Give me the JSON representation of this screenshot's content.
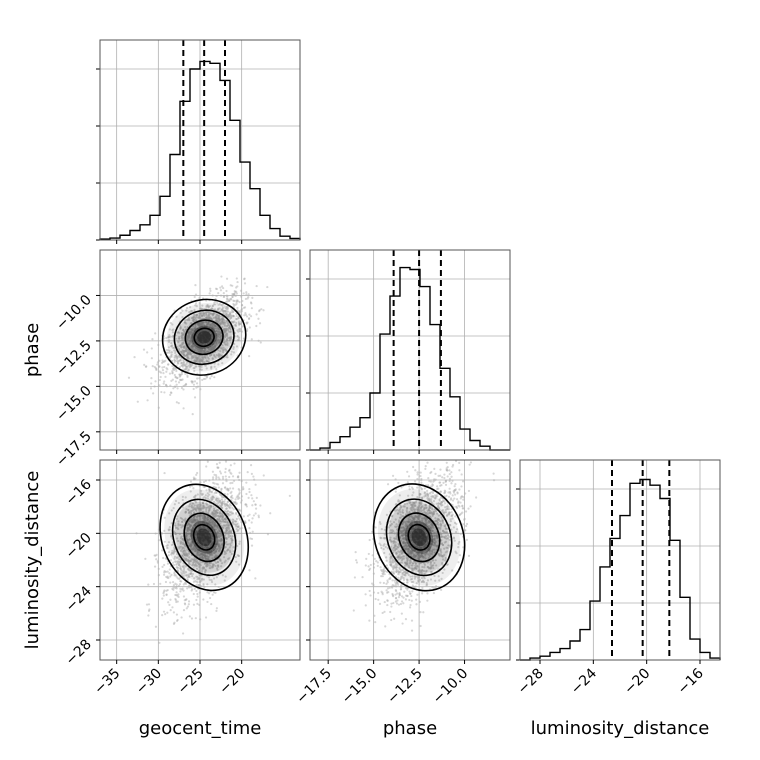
{
  "chart_data": {
    "type": "corner",
    "parameters": [
      "geocent_time",
      "phase",
      "luminosity_distance"
    ],
    "axis_labels": {
      "geocent_time": "geocent_time",
      "phase": "phase",
      "luminosity_distance": "luminosity_distance"
    },
    "ranges": {
      "geocent_time": [
        -37,
        -13
      ],
      "phase": [
        -18.5,
        -7.5
      ],
      "luminosity_distance": [
        -29.5,
        -14.5
      ]
    },
    "ticks": {
      "geocent_time": [
        -35,
        -30,
        -25,
        -20
      ],
      "phase": [
        -17.5,
        -15.0,
        -12.5,
        -10.0
      ],
      "luminosity_distance": [
        -28,
        -24,
        -20,
        -16
      ]
    },
    "tick_labels": {
      "geocent_time": [
        "−35",
        "−30",
        "−25",
        "−20"
      ],
      "phase": [
        "−17.5",
        "−15.0",
        "−12.5",
        "−10.0"
      ],
      "luminosity_distance": [
        "−28",
        "−24",
        "−20",
        "−16"
      ]
    },
    "histograms": {
      "geocent_time": {
        "edges_start": -37,
        "bin_width": 1.2,
        "counts": [
          0.005,
          0.01,
          0.025,
          0.05,
          0.08,
          0.13,
          0.23,
          0.45,
          0.73,
          0.9,
          0.94,
          0.93,
          0.84,
          0.63,
          0.41,
          0.27,
          0.13,
          0.06,
          0.02,
          0.008
        ],
        "quantiles": [
          -27.0,
          -24.5,
          -22.0
        ]
      },
      "phase": {
        "edges_start": -18.5,
        "bin_width": 0.55,
        "counts": [
          0.0,
          0.01,
          0.04,
          0.07,
          0.12,
          0.17,
          0.3,
          0.61,
          0.81,
          0.96,
          0.95,
          0.86,
          0.66,
          0.43,
          0.28,
          0.11,
          0.05,
          0.02,
          0.0,
          0.0
        ],
        "quantiles": [
          -13.9,
          -12.5,
          -11.3
        ]
      },
      "luminosity_distance": {
        "edges_start": -29.5,
        "bin_width": 0.75,
        "counts": [
          0.0,
          0.01,
          0.02,
          0.04,
          0.06,
          0.1,
          0.16,
          0.31,
          0.49,
          0.64,
          0.76,
          0.93,
          0.95,
          0.92,
          0.85,
          0.63,
          0.33,
          0.11,
          0.04,
          0.01
        ],
        "quantiles": [
          -22.6,
          -20.3,
          -18.3
        ]
      }
    },
    "joint": {
      "phase_vs_geocent_time": {
        "x_mean": -24.5,
        "y_mean": -12.3,
        "x_sd": 2.4,
        "y_sd": 1.15,
        "corr": 0.55
      },
      "luminosity_distance_vs_geocent_time": {
        "x_mean": -24.5,
        "y_mean": -20.3,
        "x_sd": 2.4,
        "y_sd": 2.3,
        "corr": 0.5
      },
      "luminosity_distance_vs_phase": {
        "x_mean": -12.5,
        "y_mean": -20.3,
        "x_sd": 1.15,
        "y_sd": 2.3,
        "corr": 0.5
      }
    },
    "grid": true,
    "colors": {
      "hist": "#000000",
      "quantile": "#000000",
      "scatter": "#b0b0b0",
      "grid": "#b0b0b0",
      "density": "#000000"
    }
  }
}
